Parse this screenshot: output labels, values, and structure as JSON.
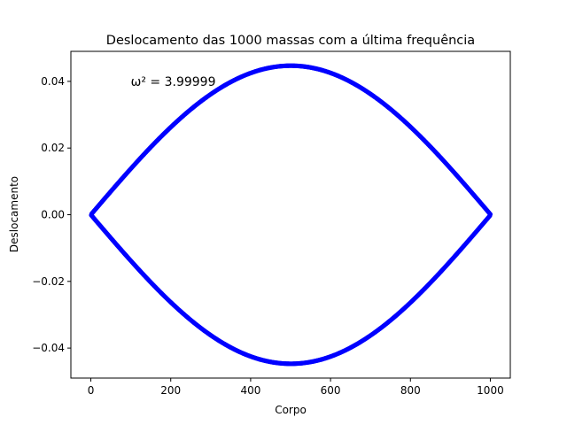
{
  "chart_data": {
    "type": "scatter",
    "title": "Deslocamento das 1000 massas com a última frequência",
    "xlabel": "Corpo",
    "ylabel": "Deslocamento",
    "xlim": [
      -50,
      1050
    ],
    "ylim": [
      -0.049,
      0.049
    ],
    "x_ticks": [
      0,
      200,
      400,
      600,
      800,
      1000
    ],
    "x_tick_labels": [
      "0",
      "200",
      "400",
      "600",
      "800",
      "1000"
    ],
    "y_ticks": [
      -0.04,
      -0.02,
      0.0,
      0.02,
      0.04
    ],
    "y_tick_labels": [
      "−0.04",
      "−0.02",
      "0.00",
      "0.02",
      "0.04"
    ],
    "grid": false,
    "legend": "none",
    "annotation": {
      "text": "ω² = 3.99999",
      "x": 100,
      "y": 0.04
    },
    "series": [
      {
        "color": "#0000ff",
        "marker": "circle",
        "description_of_data": "alternating-sign sine mode: upper envelope A*sin(pi*n/1001) and lower envelope -A*sin(pi*n/1001), n = 1..1000",
        "amplitude": 0.0447,
        "n_points": 1000
      }
    ]
  }
}
